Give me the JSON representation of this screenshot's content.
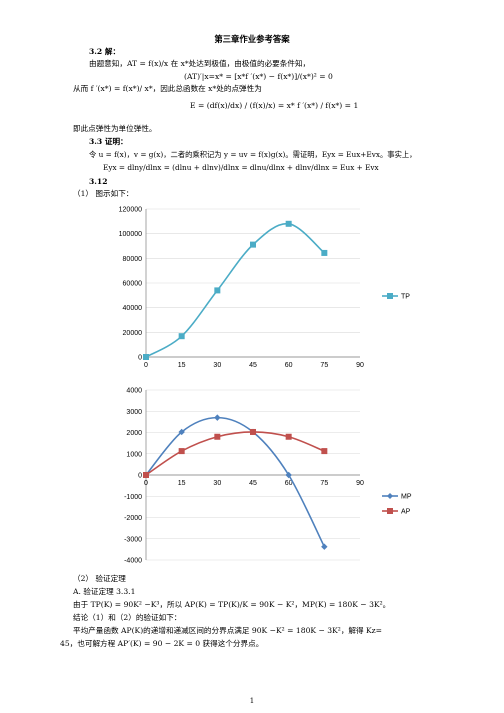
{
  "doc": {
    "title": "第三章作业参考答案",
    "s32_head": "3.2  解：",
    "s32_l1": "由题意知，AT = f(x)/x  在 x*处达到极值，由极值的必要条件知，",
    "s32_eq1": "(AT)′|x=x* = [x*f ′(x*) − f(x*)]/(x*)² = 0",
    "s32_l2": "从而 f ′(x*) = f(x*)/ x*，因此总函数在 x*处的点弹性为",
    "s32_eq2": "E = (df(x)/dx) / (f(x)/x) = x* f ′(x*) / f(x*) = 1",
    "s32_l3": "即此点弹性为单位弹性。",
    "s33_head": "3.3  证明：",
    "s33_l1": "令 u = f(x)，v = g(x)，二者的乘积记为  y = uv = f(x)g(x)。需证明，Eyx = Eux+Evx。事实上，",
    "s33_eq": "Eyx = dlny/dlnx = (dlnu + dlnv)/dlnx = dlnu/dlnx + dlnv/dlnx = Eux + Evx",
    "s312_head": "3.12",
    "s312_p1": "（1）  图示如下：",
    "s312_p2": "（2）  验证定理",
    "s312_A": "A.  验证定理 3.3.1",
    "s312_l1": "由于 TP(K) = 90K² −K³，所以 AP(K) = TP(K)/K = 90K − K²，MP(K) = 180K − 3K²。",
    "s312_l2": "结论（1）和（2）的验证如下：",
    "s312_l3": "平均产量函数 AP(K)的递增和递减区间的分界点满足 90K −K² = 180K − 3K²，解得 Kz=",
    "s312_l4": "45，也可解方程 AP′(K) = 90 − 2K = 0 获得这个分界点。",
    "page_num": "1"
  },
  "chart_data": [
    {
      "type": "line",
      "x": [
        0,
        15,
        30,
        45,
        60,
        75
      ],
      "series": [
        {
          "name": "TP",
          "values": [
            0,
            16875,
            54000,
            91125,
            108000,
            84375
          ],
          "color": "#4BACC6",
          "marker": "square"
        }
      ],
      "xticks": [
        "0",
        "15",
        "30",
        "45",
        "60",
        "75",
        "90"
      ],
      "yticks": [
        "0",
        "20000",
        "40000",
        "60000",
        "80000",
        "100000",
        "120000"
      ],
      "xlim": [
        0,
        90
      ],
      "ylim": [
        0,
        120000
      ],
      "grid": "horizontal",
      "legend": "right"
    },
    {
      "type": "line",
      "x": [
        0,
        15,
        30,
        45,
        60,
        75
      ],
      "series": [
        {
          "name": "MP",
          "values": [
            0,
            2025,
            2700,
            2025,
            0,
            -3375
          ],
          "color": "#4F81BD",
          "marker": "diamond"
        },
        {
          "name": "AP",
          "values": [
            0,
            1125,
            1800,
            2025,
            1800,
            1125
          ],
          "color": "#C0504D",
          "marker": "square"
        }
      ],
      "xticks": [
        "0",
        "15",
        "30",
        "45",
        "60",
        "75",
        "90"
      ],
      "yticks": [
        "-4000",
        "-3000",
        "-2000",
        "-1000",
        "0",
        "1000",
        "2000",
        "3000",
        "4000"
      ],
      "xlim": [
        0,
        90
      ],
      "ylim": [
        -4000,
        4000
      ],
      "grid": "horizontal",
      "legend": "right"
    }
  ]
}
